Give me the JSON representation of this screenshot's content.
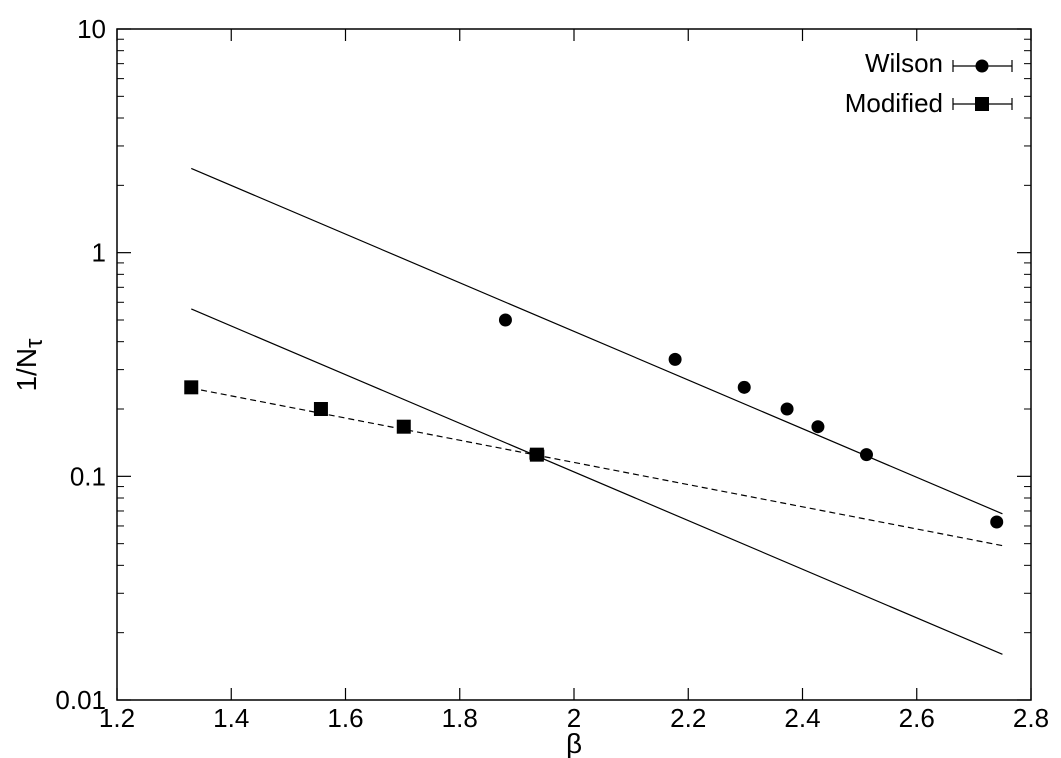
{
  "chart_data": {
    "type": "scatter",
    "title": "",
    "xlabel": "β",
    "ylabel_main": "1/N",
    "ylabel_sub": "τ",
    "xlim": [
      1.2,
      2.8
    ],
    "ylim": [
      0.01,
      10
    ],
    "yscale": "log",
    "grid": false,
    "legend_position": "top-right",
    "x_ticks": [
      "1.2",
      "1.4",
      "1.6",
      "1.8",
      "2",
      "2.2",
      "2.4",
      "2.6",
      "2.8"
    ],
    "x_tick_values": [
      1.2,
      1.4,
      1.6,
      1.8,
      2.0,
      2.2,
      2.4,
      2.6,
      2.8
    ],
    "y_ticks": [
      "0.01",
      "0.1",
      "1",
      "10"
    ],
    "y_tick_values": [
      0.01,
      0.1,
      1,
      10
    ],
    "series": [
      {
        "name": "Wilson",
        "marker": "circle",
        "points": [
          {
            "x": 1.88,
            "y": 0.5
          },
          {
            "x": 2.177,
            "y": 0.3333
          },
          {
            "x": 2.298,
            "y": 0.25
          },
          {
            "x": 2.373,
            "y": 0.2
          },
          {
            "x": 2.427,
            "y": 0.1667
          },
          {
            "x": 2.512,
            "y": 0.125
          },
          {
            "x": 2.74,
            "y": 0.0625,
            "xerr": 0.005
          }
        ]
      },
      {
        "name": "Modified",
        "marker": "square",
        "points": [
          {
            "x": 1.33,
            "y": 0.25
          },
          {
            "x": 1.557,
            "y": 0.2
          },
          {
            "x": 1.702,
            "y": 0.1667
          },
          {
            "x": 1.935,
            "y": 0.125,
            "xerr": 0.012
          }
        ]
      }
    ],
    "lines": [
      {
        "style": "solid",
        "x": [
          1.33,
          2.75
        ],
        "y": [
          2.38,
          0.068
        ]
      },
      {
        "style": "solid",
        "x": [
          1.33,
          2.75
        ],
        "y": [
          0.56,
          0.016
        ]
      },
      {
        "style": "dashed",
        "x": [
          1.33,
          2.75
        ],
        "y": [
          0.248,
          0.049
        ]
      }
    ]
  }
}
